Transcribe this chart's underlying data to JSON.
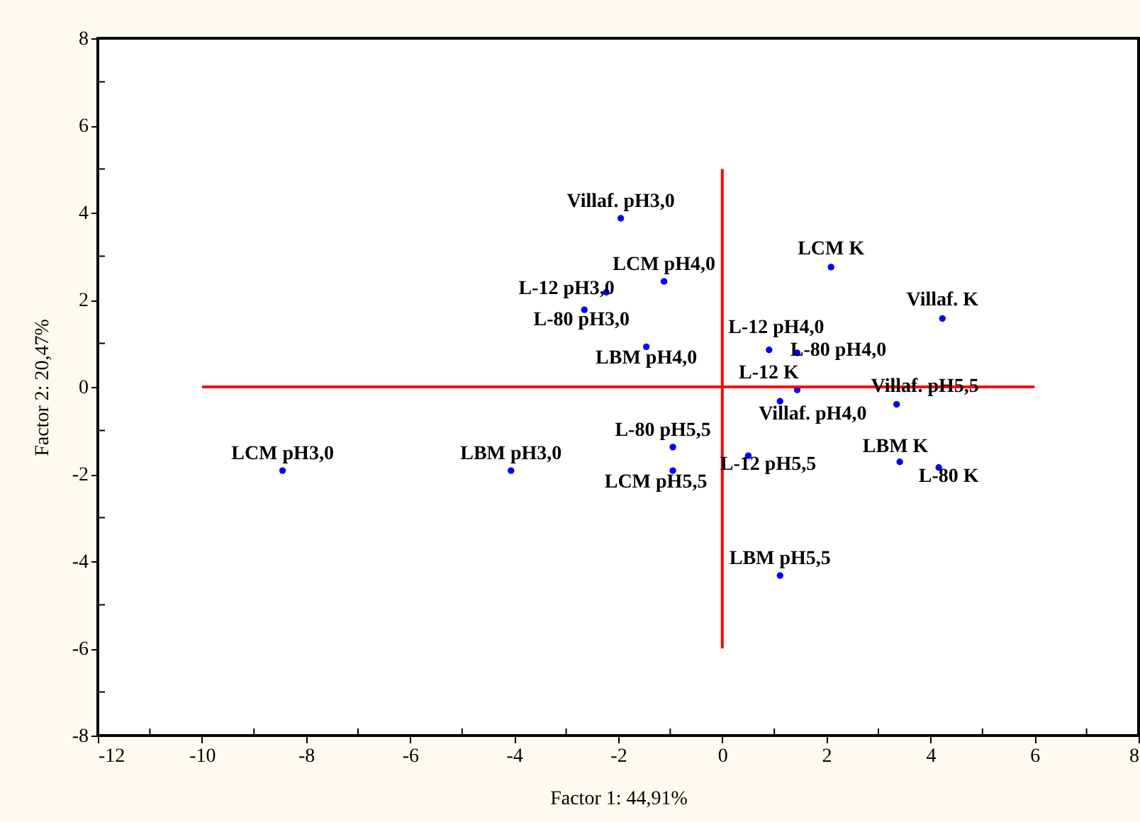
{
  "chart_data": {
    "type": "scatter",
    "xlabel": "Factor 1: 44,91%",
    "ylabel": "Factor 2: 20,47%",
    "xlim": [
      -12,
      8
    ],
    "ylim": [
      -8,
      8
    ],
    "xticks": [
      -12,
      {
        "value": -11,
        "label": null
      },
      -10,
      {
        "value": -9,
        "label": null
      },
      -8,
      {
        "value": -7,
        "label": null
      },
      -6,
      {
        "value": -5,
        "label": null
      },
      -4,
      {
        "value": -3,
        "label": null
      },
      -2,
      {
        "value": -1,
        "label": null
      },
      0,
      {
        "value": 1,
        "label": null
      },
      2,
      {
        "value": 3,
        "label": null
      },
      4,
      {
        "value": 5,
        "label": null
      },
      6,
      {
        "value": 7,
        "label": null
      },
      8
    ],
    "yticks": [
      -8,
      {
        "value": -7,
        "label": null
      },
      -6,
      {
        "value": -5,
        "label": null
      },
      -4,
      {
        "value": -3,
        "label": null
      },
      -2,
      {
        "value": -1,
        "label": null
      },
      0,
      {
        "value": 1,
        "label": null
      },
      2,
      {
        "value": 3,
        "label": null
      },
      4,
      {
        "value": 5,
        "label": null
      },
      6,
      {
        "value": 7,
        "label": null
      },
      8
    ],
    "grid": false,
    "marker": "circle",
    "series": [
      {
        "color": "#0000ff",
        "x": [
          -8.45,
          -4.06,
          -1.95,
          -1.12,
          -2.23,
          -2.65,
          -1.46,
          2.09,
          4.23,
          0.9,
          1.44,
          1.44,
          1.11,
          3.35,
          -0.95,
          -0.95,
          0.5,
          3.41,
          4.16,
          1.11
        ],
        "values": [
          -1.92,
          -1.92,
          3.87,
          2.42,
          2.17,
          1.77,
          0.92,
          2.75,
          1.57,
          0.85,
          0.78,
          -0.07,
          -0.33,
          -0.4,
          -1.38,
          -1.92,
          -1.58,
          -1.72,
          -1.85,
          -4.33
        ]
      },
      {
        "type": "line",
        "color": "#ff0000",
        "marker": "none",
        "x": [
          -10,
          6
        ],
        "values": [
          0,
          0
        ]
      },
      {
        "type": "line",
        "color": "#ff0000",
        "marker": "none",
        "x": [
          0,
          0
        ],
        "values": [
          -6,
          5
        ]
      }
    ],
    "annotations": [
      {
        "text": "LCM pH3,0",
        "x": -8.45,
        "y": -1.92
      },
      {
        "text": "LBM pH3,0",
        "x": -4.06,
        "y": -1.92
      },
      {
        "text": "Villaf. pH3,0",
        "x": -1.95,
        "y": 3.87
      },
      {
        "text": "LCM pH4,0",
        "x": -1.12,
        "y": 2.42
      },
      {
        "text": "L-12 pH3,0",
        "x": -2.23,
        "y": 2.17
      },
      {
        "text": "L-80 pH3,0",
        "x": -2.65,
        "y": 1.77
      },
      {
        "text": "LBM pH4,0",
        "x": -1.46,
        "y": 0.92
      },
      {
        "text": "LCM K",
        "x": 2.09,
        "y": 2.75
      },
      {
        "text": "Villaf. K",
        "x": 4.23,
        "y": 1.57
      },
      {
        "text": "L-12 pH4,0",
        "x": 0.9,
        "y": 0.85
      },
      {
        "text": "L-80 pH4,0",
        "x": 1.44,
        "y": 0.78
      },
      {
        "text": "L-12 K",
        "x": 1.44,
        "y": -0.07
      },
      {
        "text": "Villaf. pH4,0",
        "x": 1.11,
        "y": -0.33
      },
      {
        "text": "Villaf. pH5,5",
        "x": 3.35,
        "y": -0.4
      },
      {
        "text": "L-80 pH5,5",
        "x": -0.95,
        "y": -1.38
      },
      {
        "text": "LCM pH5,5",
        "x": -0.95,
        "y": -1.92
      },
      {
        "text": "L-12 pH5,5",
        "x": 0.5,
        "y": -1.58
      },
      {
        "text": "LBM K",
        "x": 3.41,
        "y": -1.72
      },
      {
        "text": "L-80 K",
        "x": 4.16,
        "y": -1.85
      },
      {
        "text": "LBM pH5,5",
        "x": 1.11,
        "y": -4.33
      }
    ]
  }
}
